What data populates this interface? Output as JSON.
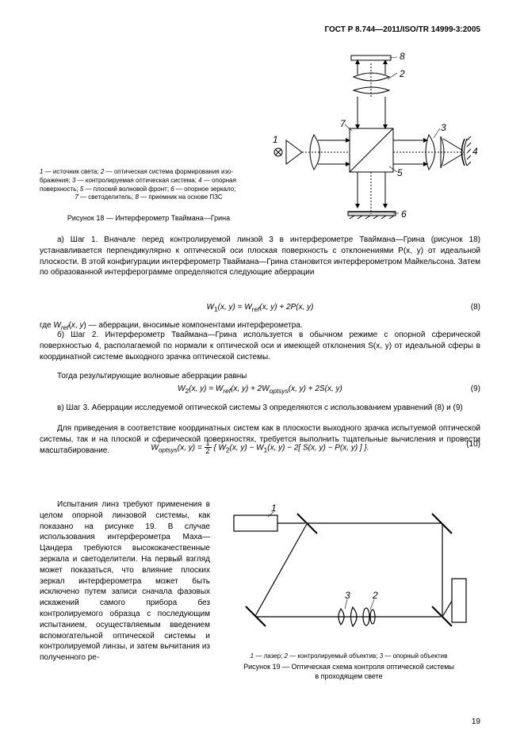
{
  "header_id": "ГОСТ Р 8.744—2011/ISO/TR 14999-3:2005",
  "page_number": "19",
  "fig18": {
    "legend_html": "<i>1</i> — источник света; <i>2</i> — оптическая система формирования изо-<br>бражения; <i>3</i> — контролируемая оптическая система; <i>4</i> — опорная<br>поверхность; <i>5</i> — плоский волновой фронт; <i>6</i> — опорное зеркало;<br><span style='display:inline-block;width:100%;text-align:center'><i>7</i> — светоделитель; <i>8</i> — приемник на основе ПЗС</span>",
    "caption": "Рисунок 18 — Интерферометр Тваймана—Грина",
    "labels": {
      "l1": "1",
      "l2": "2",
      "l3": "3",
      "l4": "4",
      "l5": "5",
      "l6": "6",
      "l7": "7",
      "l8": "8"
    },
    "colors": {
      "stroke": "#000000",
      "fill_none": "none"
    }
  },
  "fig19": {
    "legend_html": "<i>1</i> — лазер; <i>2</i> — контролируемый объектив; <i>3</i> — опорный объектив",
    "caption_l1": "Рисунок 19 — Оптическая схема контроля оптической системы",
    "caption_l2": "в проходящем свете",
    "labels": {
      "l1": "1",
      "l2": "2",
      "l3": "3"
    },
    "colors": {
      "stroke": "#000000"
    }
  },
  "para": {
    "p1": "а) Шаг 1. Вначале перед контролируемой линзой 3 в интерферометре Тваймана—Грина (рисунок 18) устанавливается перпендикулярно к оптической оси плоская поверхность с отклонениями P(x, y) от идеальной плоскости. В этой конфигурации интерферометр Тваймана—Грина становится интерферометром Майкельсона. Затем по образованной интерферограмме определяются следующие аберрации",
    "p2": "где Wref(x, y) — аберрации, вносимые компонентами интерферометра.",
    "p3": "б) Шаг 2. Интерферометр Тваймана—Грина используется в обычном режиме с опорной сферической поверхностью 4, располагаемой по нормали к оптической оси и имеющей отклонения S(x, y) от идеальной сферы в координатной системе выходного зрачка оптической системы.",
    "p4": "Тогда результирующие волновые аберрации равны",
    "p5": "в) Шаг 3. Аберрации исследуемой оптической системы 3 определяются с использованием уравнений (8) и (9)",
    "p6": "Для приведения в соответствие координатных систем как в плоскости выходного зрачка испытуемой оптической системы, так и на плоской и сферической поверхностях, требуется выполнить тщательные вычисления и провести масштабирование.",
    "p7": "Испытания линз требуют применения в целом опорной линзовой системы, как показано на рисунке 19. В случае использования интерферометра Маха—Цандера требуются высококачественные зеркала и светоделители. На первый взгляд может показаться, что влияние плоских зеркал интерферометра может быть исключено путем записи сначала фазовых искажений самого прибора без контролируемого образца с последующим испытанием, осуществляемым введением вспомогательной оптической системы и контролируемой линзы, и затем вычитания из полученного ре-"
  },
  "eq": {
    "eq8": "W₁(x,  y)  =  W_ref(x,  y)  +  2P(x,  y)",
    "eq8no": "(8)",
    "eq9": "W₂(x,  y)  =  W_ref(x,  y)  +  2W_optsys(x,  y)  +  2S(x,  y)",
    "eq9no": "(9)",
    "eq10_left": "W_optsys(x, y) = ",
    "eq10_num": "1",
    "eq10_den": "2",
    "eq10_right": "{ W₂(x, y) − W₁(x, y) − 2[ S(x, y) − P(x, y) ] }.",
    "eq10no": "(10)"
  }
}
